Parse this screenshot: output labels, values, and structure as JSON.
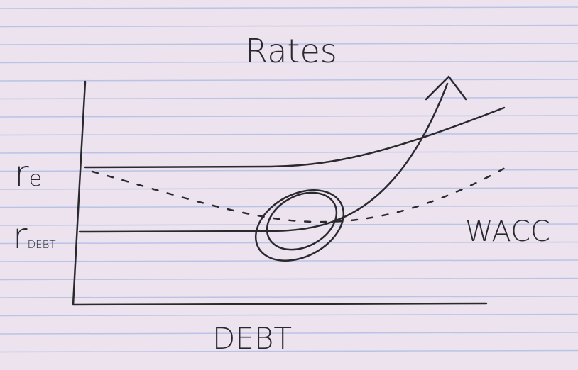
{
  "title": "Rates",
  "x_axis_label": "DEBT",
  "y_labels": [
    {
      "main": "r",
      "sub": "e"
    },
    {
      "main": "r",
      "sub": "DEBT"
    }
  ],
  "curve_label": "WACC"
}
